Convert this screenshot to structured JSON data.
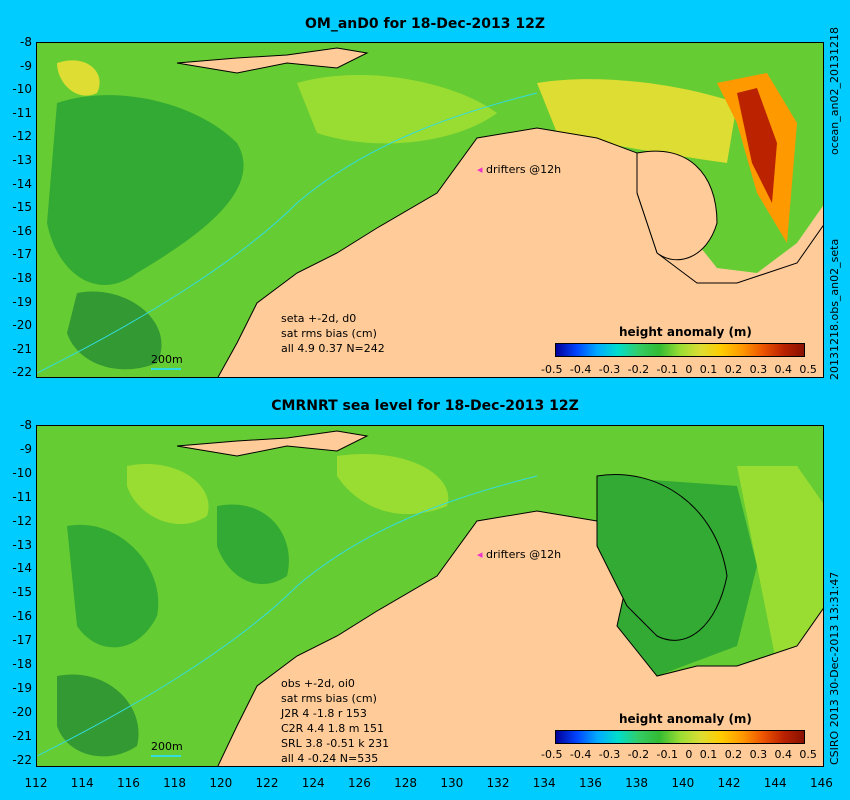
{
  "top_panel": {
    "title": "OM_anD0 for 18-Dec-2013 12Z",
    "side_label_1": "ocean_an02_20131218",
    "side_label_2": "20131218.obs_an02_seta",
    "drifters_label": "drifters @12h",
    "scale_label": "200m",
    "notes": [
      "seta +-2d, d0",
      "sat rms bias (cm)",
      "all 4.9 0.37 N=242"
    ],
    "legend_title": "height anomaly (m)"
  },
  "bottom_panel": {
    "title": "CMRNRT sea level  for 18-Dec-2013 12Z",
    "side_label_1": "CSIRO 2013  30-Dec-2013 13:31:47",
    "drifters_label": "drifters @12h",
    "scale_label": "200m",
    "notes": [
      "obs +-2d, oi0",
      "sat rms bias (cm)",
      "J2R   4 -1.8 r 153",
      "C2R   4.4 1.8 m 151",
      "SRL   3.8 -0.51 k 231",
      "all   4 -0.24 N=535"
    ],
    "legend_title": "height anomaly (m)"
  },
  "colorbar_ticks": [
    "-0.5",
    "-0.4",
    "-0.3",
    "-0.2",
    "-0.1",
    "0",
    "0.1",
    "0.2",
    "0.3",
    "0.4",
    "0.5"
  ],
  "lat_labels": [
    "-8",
    "-9",
    "-10",
    "-11",
    "-12",
    "-13",
    "-14",
    "-15",
    "-16",
    "-17",
    "-18",
    "-19",
    "-20",
    "-21",
    "-22"
  ],
  "lon_labels": [
    "112",
    "114",
    "116",
    "118",
    "120",
    "122",
    "124",
    "126",
    "128",
    "130",
    "132",
    "134",
    "136",
    "138",
    "140",
    "142",
    "144",
    "146"
  ],
  "colors": {
    "background": "#00ccff",
    "land": "#ffcc99",
    "drifter": "#ee33cc"
  }
}
